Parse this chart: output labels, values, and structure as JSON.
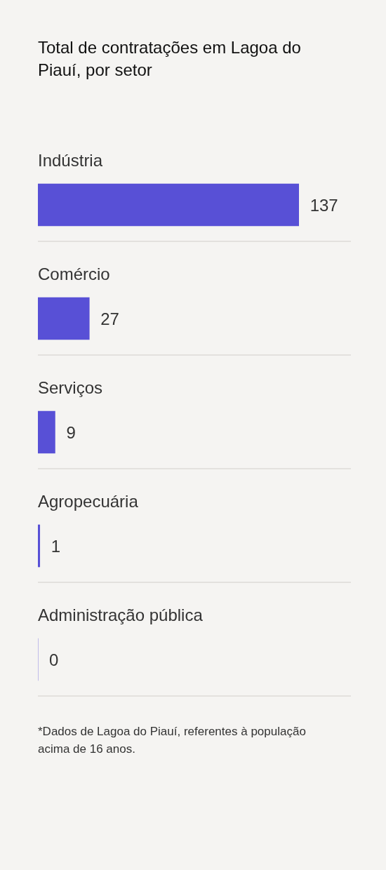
{
  "chart_data": {
    "type": "bar",
    "orientation": "horizontal",
    "title": "Total de contratações em Lagoa do Piauí, por setor",
    "categories": [
      "Indústria",
      "Comércio",
      "Serviços",
      "Agropecuária",
      "Administração pública"
    ],
    "values": [
      137,
      27,
      9,
      1,
      0
    ],
    "color": "#5850d6",
    "data_labels": true,
    "grid": "y",
    "legend": false,
    "annotations": [
      "*Dados de Lagoa do Piauí, referentes à população acima de 16 anos."
    ]
  }
}
